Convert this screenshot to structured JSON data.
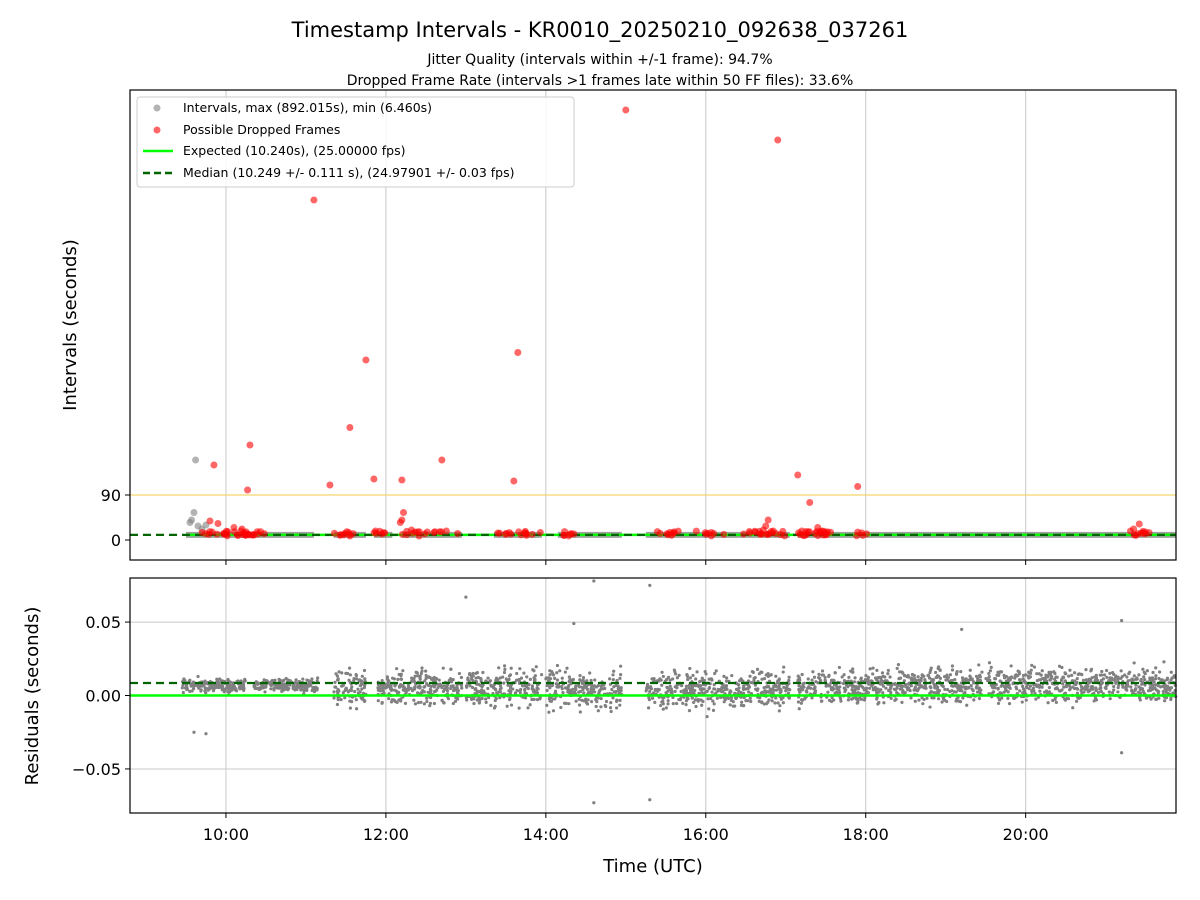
{
  "figure": {
    "title": "Timestamp Intervals - KR0010_20250210_092638_037261",
    "subtitle1": "Jitter Quality (intervals within +/-1 frame): 94.7%",
    "subtitle2": "Dropped Frame Rate (intervals >1 frames late within 50 FF files): 33.6%",
    "xlabel": "Time (UTC)",
    "x_ticks": [
      "10:00",
      "12:00",
      "14:00",
      "16:00",
      "18:00",
      "20:00"
    ]
  },
  "colors": {
    "intervals": "#808080",
    "dropped": "#ff0000",
    "expected": "#00ff00",
    "median": "#006400",
    "threshold": "#f5d76e",
    "grid": "#c8c8c8"
  },
  "chart_data": [
    {
      "type": "scatter",
      "ylabel": "Intervals (seconds)",
      "y_ticks": [
        "0",
        "90"
      ],
      "xlim_hours": [
        8.8,
        21.88
      ],
      "ylim": [
        -40,
        900
      ],
      "grid": "x only",
      "legend_position": "top-left",
      "threshold_line_y": 90,
      "legend": [
        {
          "label": "Intervals, max (892.015s), min (6.460s)"
        },
        {
          "label": "Possible Dropped Frames"
        },
        {
          "label": "Expected (10.240s), (25.00000 fps)"
        },
        {
          "label": "Median (10.249 +/- 0.111 s), (24.97901 +/- 0.03 fps)"
        }
      ],
      "series": [
        {
          "name": "Expected (10.240s), (25.00000 fps)",
          "kind": "hline",
          "y": 10.24
        },
        {
          "name": "Median (10.249 +/- 0.111 s), (24.97901 +/- 0.03 fps)",
          "kind": "hline",
          "y": 10.249
        },
        {
          "name": "Intervals, max (892.015s), min (6.460s)",
          "kind": "scatter",
          "segments_hours": [
            [
              9.5,
              11.1
            ],
            [
              11.35,
              11.75
            ],
            [
              11.85,
              12.08
            ],
            [
              12.2,
              12.95
            ],
            [
              13.35,
              13.95
            ],
            [
              14.15,
              14.95
            ],
            [
              15.25,
              16.5
            ],
            [
              16.5,
              17.05
            ],
            [
              17.15,
              18.1
            ],
            [
              18.1,
              21.88
            ]
          ],
          "points": [
            [
              9.55,
              35
            ],
            [
              9.57,
              40
            ],
            [
              9.6,
              55
            ],
            [
              9.62,
              160
            ],
            [
              9.65,
              28
            ],
            [
              9.7,
              22
            ],
            [
              9.75,
              30
            ]
          ]
        },
        {
          "name": "Possible Dropped Frames",
          "kind": "scatter",
          "points": [
            [
              15.0,
              860
            ],
            [
              16.9,
              800
            ],
            [
              11.1,
              680
            ],
            [
              11.75,
              360
            ],
            [
              13.65,
              375
            ],
            [
              11.55,
              225
            ],
            [
              10.3,
              190
            ],
            [
              9.85,
              150
            ],
            [
              12.7,
              160
            ],
            [
              17.15,
              130
            ],
            [
              11.85,
              122
            ],
            [
              12.2,
              120
            ],
            [
              13.6,
              118
            ],
            [
              11.3,
              110
            ],
            [
              17.9,
              107
            ],
            [
              10.27,
              100
            ],
            [
              17.3,
              75
            ],
            [
              12.22,
              55
            ],
            [
              12.2,
              40
            ],
            [
              12.18,
              35
            ],
            [
              16.78,
              40
            ],
            [
              9.8,
              38
            ],
            [
              9.9,
              33
            ],
            [
              10.1,
              25
            ],
            [
              10.2,
              22
            ],
            [
              11.87,
              18
            ],
            [
              12.32,
              20
            ],
            [
              17.4,
              25
            ],
            [
              17.45,
              18
            ],
            [
              21.35,
              22
            ],
            [
              21.42,
              32
            ],
            [
              16.75,
              28
            ],
            [
              16.72,
              20
            ],
            [
              17.2,
              18
            ],
            [
              9.7,
              15
            ],
            [
              10.0,
              12
            ],
            [
              10.4,
              12
            ],
            [
              13.4,
              14
            ],
            [
              14.3,
              12
            ],
            [
              15.6,
              14
            ],
            [
              16.1,
              13
            ],
            [
              16.55,
              14
            ]
          ]
        }
      ]
    },
    {
      "type": "scatter",
      "ylabel": "Residuals (seconds)",
      "y_ticks": [
        "−0.05",
        "0.00",
        "0.05"
      ],
      "y_tick_values": [
        -0.05,
        0.0,
        0.05
      ],
      "xlim_hours": [
        8.8,
        21.88
      ],
      "ylim": [
        -0.08,
        0.08
      ],
      "grid": "x and y",
      "series": [
        {
          "name": "Expected",
          "kind": "hline",
          "y": 0.0
        },
        {
          "name": "Median",
          "kind": "hline",
          "y": 0.0085
        },
        {
          "name": "Residuals",
          "kind": "scatter",
          "segments": [
            {
              "hours": [
                9.45,
                10.25
              ],
              "mean": 0.007,
              "spread": 0.004
            },
            {
              "hours": [
                10.35,
                11.15
              ],
              "mean": 0.007,
              "spread": 0.004
            },
            {
              "hours": [
                11.35,
                11.75
              ],
              "mean": 0.004,
              "spread": 0.012
            },
            {
              "hours": [
                11.9,
                12.95
              ],
              "mean": 0.005,
              "spread": 0.012
            },
            {
              "hours": [
                13.0,
                13.95
              ],
              "mean": 0.005,
              "spread": 0.012
            },
            {
              "hours": [
                14.0,
                14.95
              ],
              "mean": 0.004,
              "spread": 0.012
            },
            {
              "hours": [
                15.25,
                16.5
              ],
              "mean": 0.004,
              "spread": 0.012
            },
            {
              "hours": [
                16.5,
                17.05
              ],
              "mean": 0.004,
              "spread": 0.012
            },
            {
              "hours": [
                17.15,
                18.1
              ],
              "mean": 0.006,
              "spread": 0.011
            },
            {
              "hours": [
                18.1,
                21.88
              ],
              "mean": 0.007,
              "spread": 0.011
            }
          ],
          "outliers": [
            [
              14.6,
              0.078
            ],
            [
              15.3,
              0.075
            ],
            [
              13.0,
              0.067
            ],
            [
              21.2,
              0.051
            ],
            [
              19.2,
              0.045
            ],
            [
              14.35,
              0.049
            ],
            [
              14.6,
              -0.073
            ],
            [
              15.3,
              -0.071
            ],
            [
              21.2,
              -0.039
            ],
            [
              9.6,
              -0.025
            ],
            [
              9.75,
              -0.026
            ]
          ]
        }
      ]
    }
  ]
}
